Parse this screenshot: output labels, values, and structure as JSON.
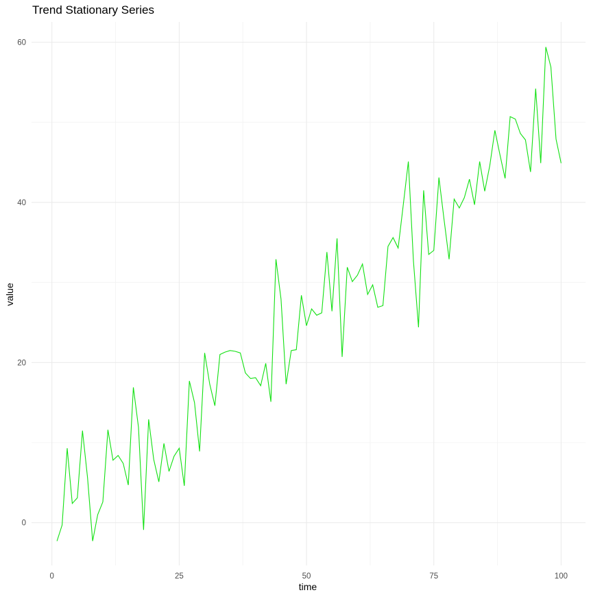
{
  "chart_data": {
    "type": "line",
    "title": "Trend Stationary Series",
    "xlabel": "time",
    "ylabel": "value",
    "xlim": [
      -4,
      105
    ],
    "ylim": [
      -5.3,
      62.7
    ],
    "x_ticks": [
      0,
      25,
      50,
      75,
      100
    ],
    "y_ticks": [
      0,
      20,
      40,
      60
    ],
    "x_tick_labels": [
      "0",
      "25",
      "50",
      "75",
      "100"
    ],
    "y_tick_labels": [
      "0",
      "20",
      "40",
      "60"
    ],
    "grid": true,
    "legend": null,
    "line_color": "#11e011",
    "series": [
      {
        "name": "value",
        "x": [
          1,
          2,
          3,
          4,
          5,
          6,
          7,
          8,
          9,
          10,
          11,
          12,
          13,
          14,
          15,
          16,
          17,
          18,
          19,
          20,
          21,
          22,
          23,
          24,
          25,
          26,
          27,
          28,
          29,
          30,
          31,
          32,
          33,
          34,
          35,
          36,
          37,
          38,
          39,
          40,
          41,
          42,
          43,
          44,
          45,
          46,
          47,
          48,
          49,
          50,
          51,
          52,
          53,
          54,
          55,
          56,
          57,
          58,
          59,
          60,
          61,
          62,
          63,
          64,
          65,
          66,
          67,
          68,
          69,
          70,
          71,
          72,
          73,
          74,
          75,
          76,
          77,
          78,
          79,
          80,
          81,
          82,
          83,
          84,
          85,
          86,
          87,
          88,
          89,
          90,
          91,
          92,
          93,
          94,
          95,
          96,
          97,
          98,
          99,
          100
        ],
        "values": [
          -2.3,
          -0.3,
          9.3,
          2.4,
          3.1,
          11.5,
          5.6,
          -2.3,
          1.0,
          2.6,
          11.6,
          7.8,
          8.4,
          7.4,
          4.7,
          16.9,
          11.9,
          -0.9,
          12.9,
          7.9,
          5.1,
          9.9,
          6.4,
          8.3,
          9.3,
          4.6,
          17.7,
          15.0,
          8.9,
          21.2,
          17.3,
          14.6,
          21.0,
          21.3,
          21.5,
          21.4,
          21.2,
          18.7,
          18.0,
          18.1,
          17.1,
          19.9,
          15.1,
          32.9,
          27.9,
          17.3,
          21.5,
          21.6,
          28.4,
          24.6,
          26.7,
          25.9,
          26.2,
          33.8,
          26.4,
          35.5,
          20.7,
          31.9,
          30.1,
          30.9,
          32.3,
          28.5,
          29.7,
          26.9,
          27.1,
          34.5,
          35.6,
          34.3,
          39.7,
          45.1,
          32.7,
          24.4,
          41.5,
          33.5,
          34.0,
          43.1,
          37.9,
          32.9,
          40.4,
          39.3,
          40.6,
          42.9,
          39.7,
          45.1,
          41.4,
          44.6,
          49.0,
          45.9,
          43.0,
          50.7,
          50.4,
          48.6,
          47.8,
          43.8,
          54.2,
          44.9,
          59.4,
          56.9,
          47.9,
          44.9
        ]
      }
    ]
  }
}
